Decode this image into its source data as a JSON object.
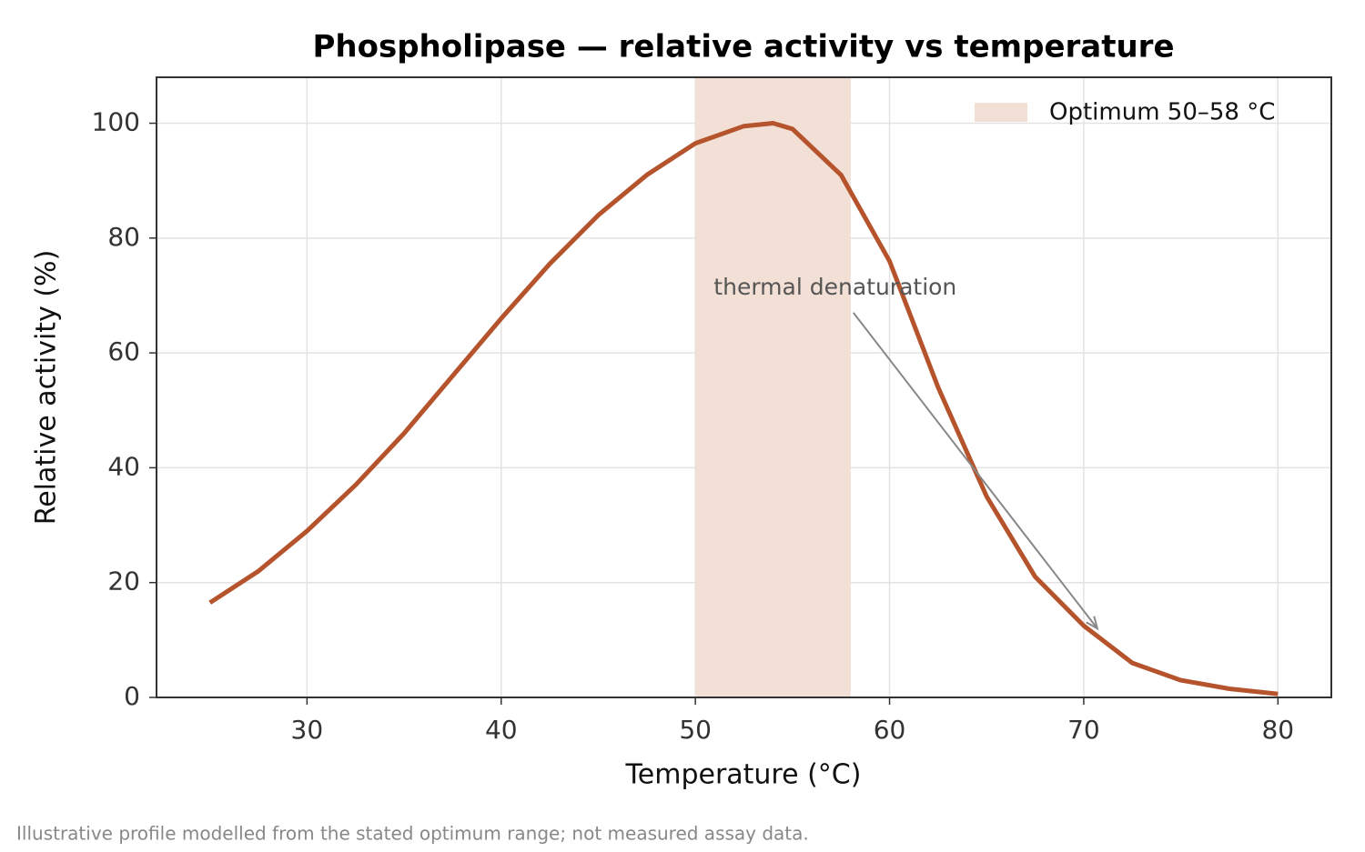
{
  "chart_data": {
    "type": "line",
    "title": "Phospholipase — relative activity vs temperature",
    "xlabel": "Temperature (°C)",
    "ylabel": "Relative activity (%)",
    "x": [
      25,
      27.5,
      30,
      32.5,
      35,
      37.5,
      40,
      42.5,
      45,
      47.5,
      50,
      52.5,
      54,
      55,
      57.5,
      60,
      62.5,
      65,
      67.5,
      70,
      72.5,
      75,
      77.5,
      80
    ],
    "values": [
      16.5,
      22,
      29,
      37,
      46,
      56,
      66,
      75.5,
      84,
      91,
      96.5,
      99.5,
      100,
      99,
      91,
      76,
      54,
      35,
      21,
      12.5,
      6,
      3,
      1.5,
      0.6
    ],
    "color": "#b5542c",
    "xlim": [
      22.25,
      82.75
    ],
    "ylim": [
      0,
      108
    ],
    "xticks": [
      30,
      40,
      50,
      60,
      70,
      80
    ],
    "yticks": [
      0,
      20,
      40,
      60,
      80,
      100
    ],
    "grid": true,
    "span": {
      "name": "Optimum 50–58 °C",
      "range": [
        50,
        58
      ],
      "color": "#f2dfd5"
    },
    "legend": "upper right",
    "annotation": {
      "text": "thermal denaturation",
      "xytext": [
        57.2,
        67
      ],
      "xy": [
        70.7,
        12
      ]
    },
    "footnote": "Illustrative profile modelled from the stated optimum range; not measured assay data."
  }
}
